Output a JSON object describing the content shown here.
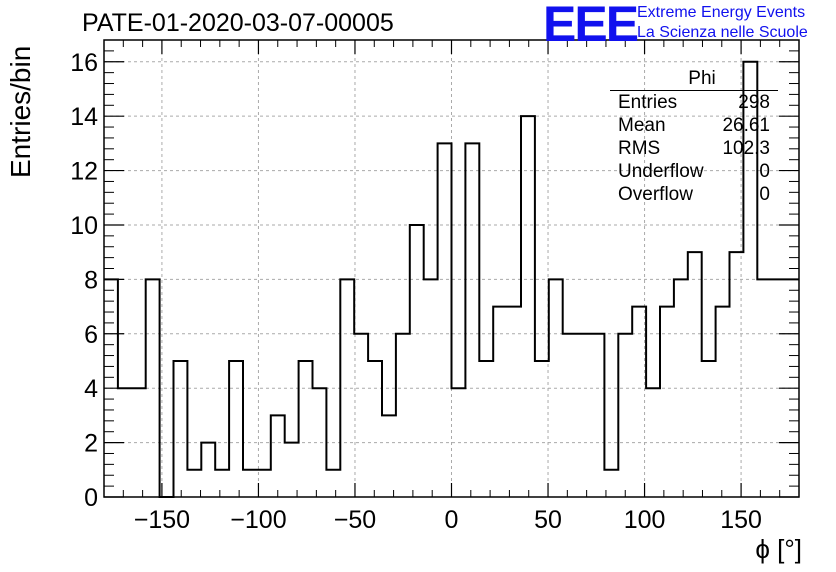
{
  "header": {
    "title": "PATE-01-2020-03-07-00005",
    "logo_mark": "EEE",
    "logo_line1": "Extreme Energy Events",
    "logo_line2": "La Scienza nelle Scuole"
  },
  "stats_box": {
    "title": "Phi",
    "rows": [
      {
        "label": "Entries",
        "value": "298"
      },
      {
        "label": "Mean",
        "value": "26.61"
      },
      {
        "label": "RMS",
        "value": "102.3"
      },
      {
        "label": "Underflow",
        "value": "0"
      },
      {
        "label": "Overflow",
        "value": "0"
      }
    ]
  },
  "colors": {
    "line": "#000000",
    "grid": "#aaaaaa",
    "logo": "#1111ee"
  },
  "chart_data": {
    "type": "histogram",
    "title": "PATE-01-2020-03-07-00005",
    "xlabel": "ϕ [°]",
    "ylabel": "Entries/bin",
    "xlim": [
      -180,
      180
    ],
    "ylim": [
      0,
      16.8
    ],
    "grid": true,
    "bin_edges_start": -180,
    "bin_width": 7.2,
    "values": [
      8,
      4,
      4,
      8,
      0,
      5,
      1,
      2,
      1,
      5,
      1,
      1,
      3,
      2,
      5,
      4,
      1,
      8,
      6,
      5,
      3,
      6,
      10,
      8,
      13,
      4,
      13,
      5,
      7,
      7,
      14,
      5,
      8,
      6,
      6,
      6,
      1,
      6,
      7,
      4,
      7,
      8,
      9,
      5,
      7,
      9,
      16,
      8,
      8,
      8
    ],
    "x_ticks": [
      -150,
      -100,
      -50,
      0,
      50,
      100,
      150
    ],
    "x_tick_labels": [
      "−150",
      "−100",
      "−50",
      "0",
      "50",
      "100",
      "150"
    ],
    "y_ticks": [
      0,
      2,
      4,
      6,
      8,
      10,
      12,
      14,
      16
    ],
    "y_tick_labels": [
      "0",
      "2",
      "4",
      "6",
      "8",
      "10",
      "12",
      "14",
      "16"
    ]
  }
}
